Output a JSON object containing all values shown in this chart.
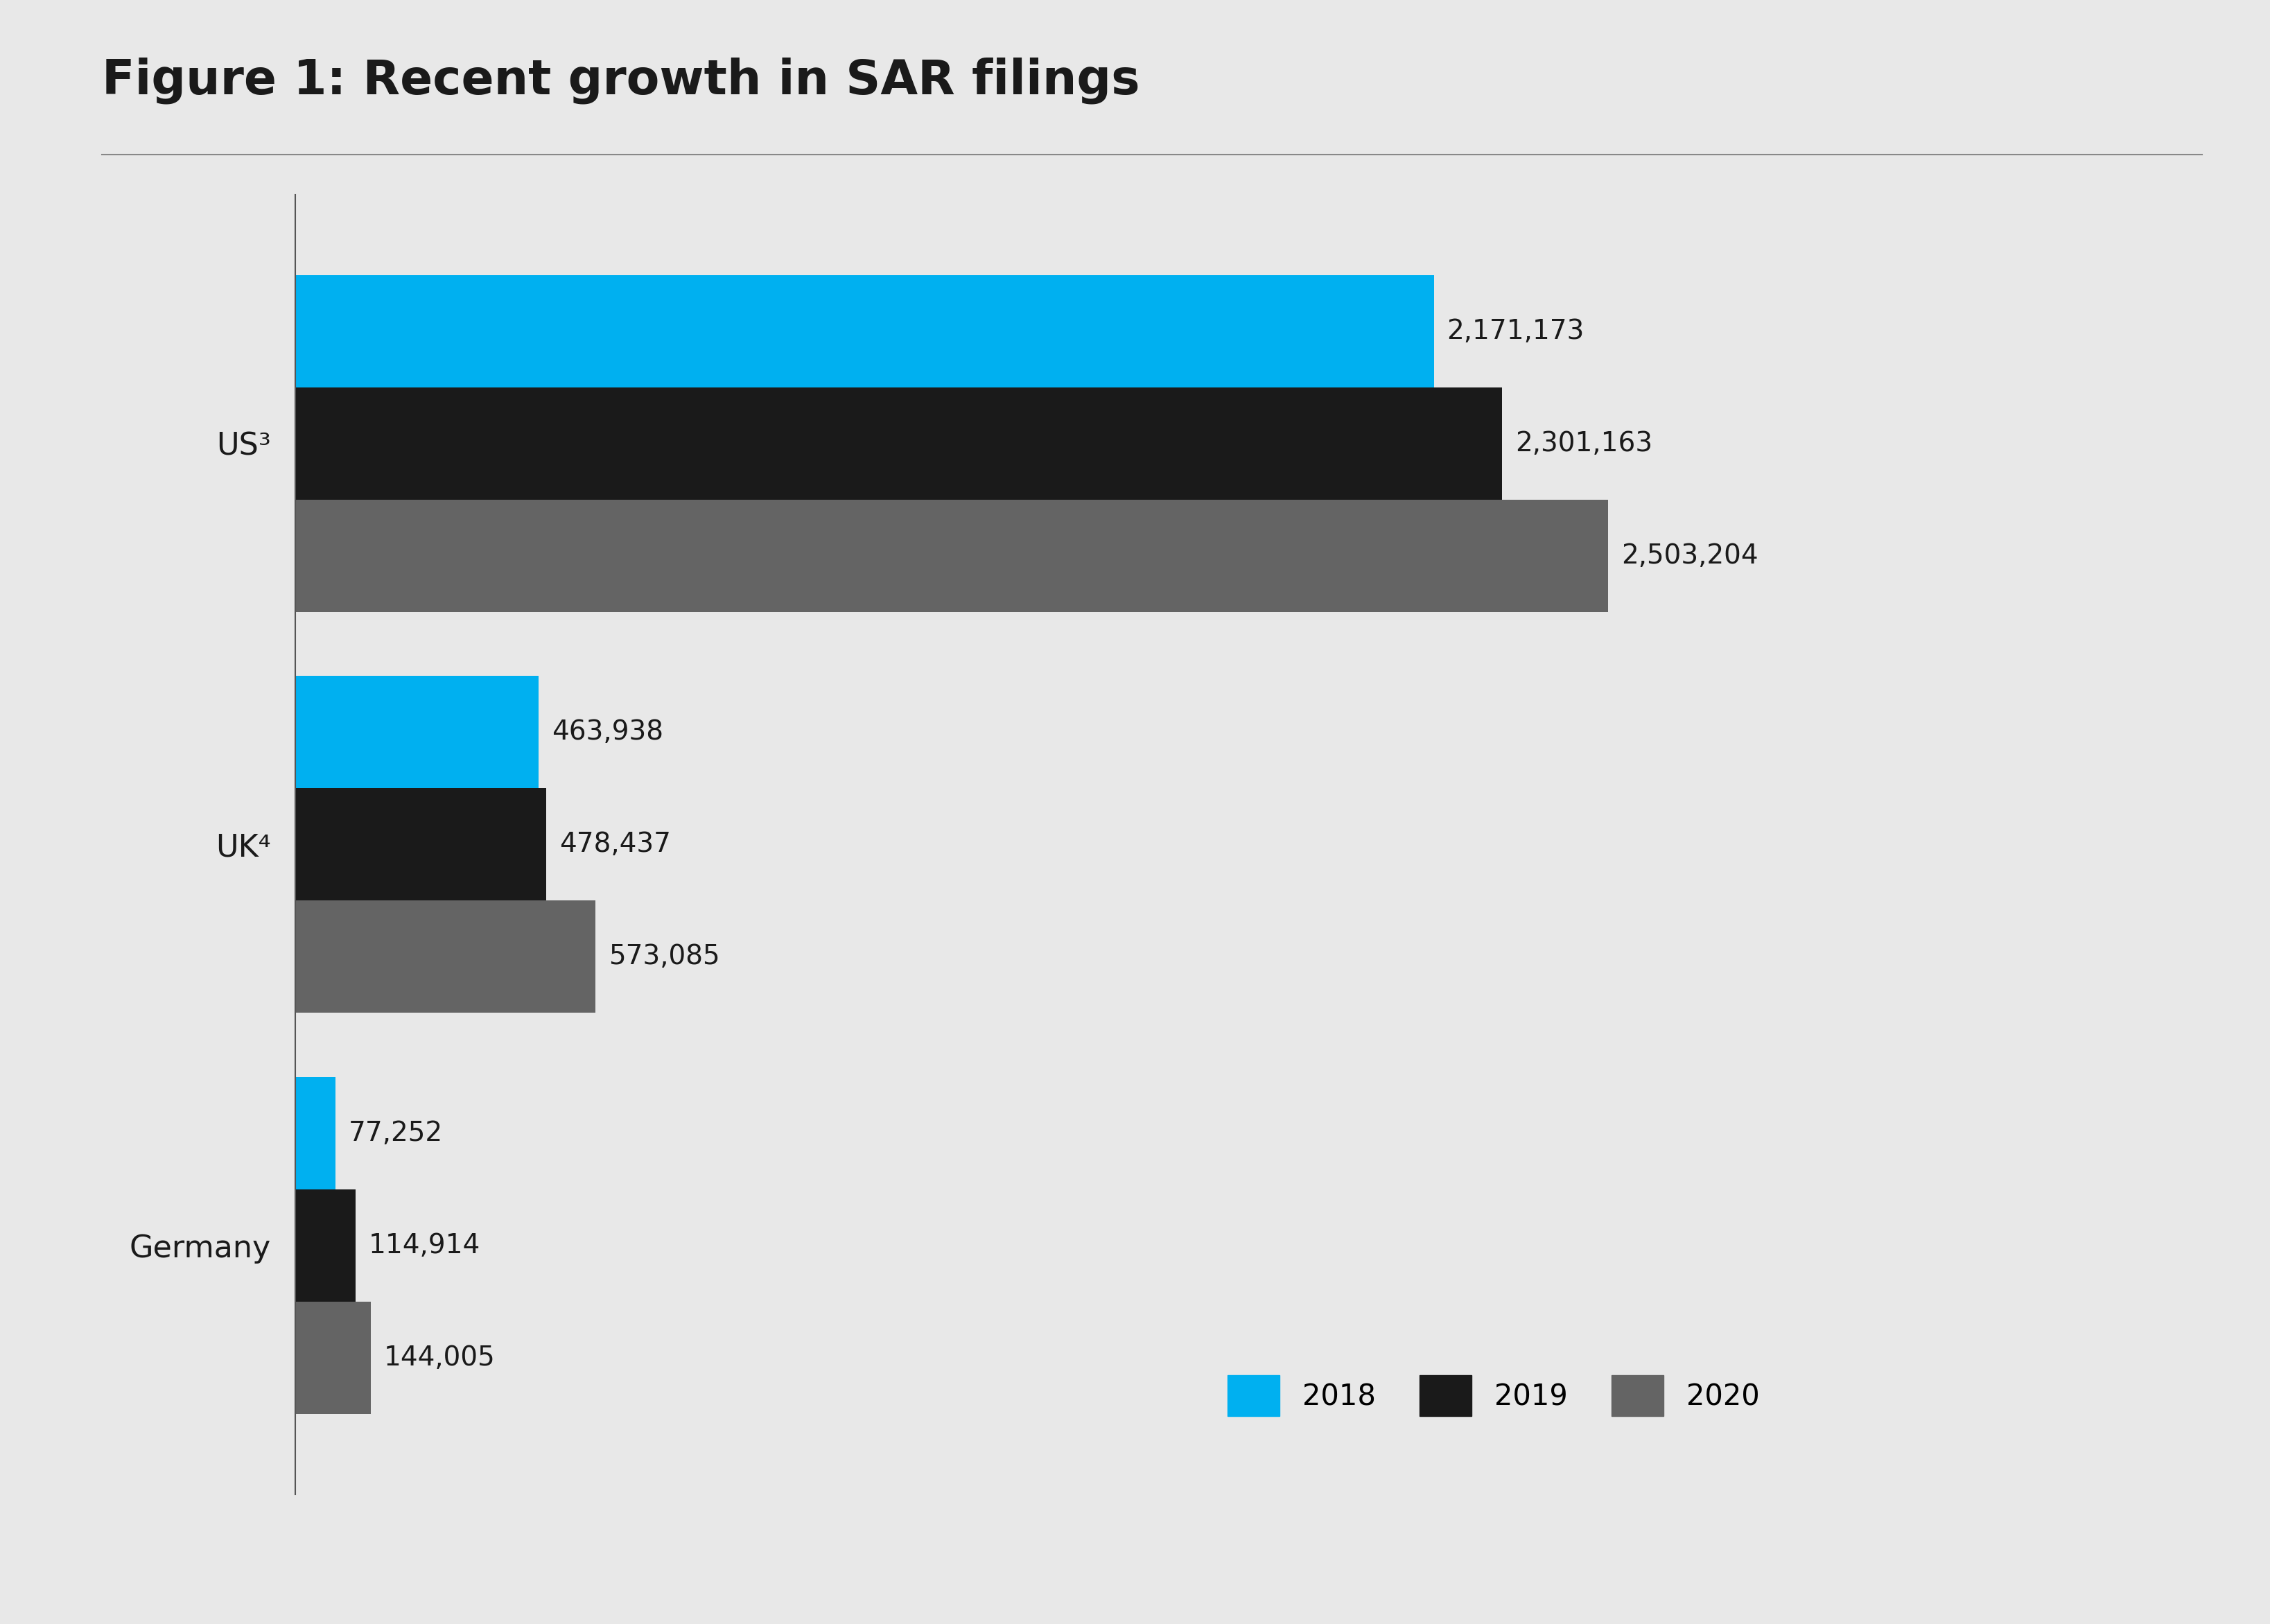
{
  "title": "Figure 1: Recent growth in SAR filings",
  "background_color": "#e8e8e8",
  "categories": [
    "US³",
    "UK⁴",
    "Germany"
  ],
  "years": [
    "2018",
    "2019",
    "2020"
  ],
  "colors": [
    "#00b0f0",
    "#1a1a1a",
    "#646464"
  ],
  "values": {
    "US³": [
      2171173,
      2301163,
      2503204
    ],
    "UK⁴": [
      463938,
      478437,
      573085
    ],
    "Germany": [
      77252,
      114914,
      144005
    ]
  },
  "labels": {
    "US³": [
      "2,171,173",
      "2,301,163",
      "2,503,204"
    ],
    "UK⁴": [
      "463,938",
      "478,437",
      "573,085"
    ],
    "Germany": [
      "77,252",
      "114,914",
      "144,005"
    ]
  },
  "xlim": [
    0,
    2900000
  ],
  "bar_height": 0.28,
  "label_fontsize": 28,
  "title_fontsize": 50,
  "axis_label_fontsize": 32,
  "legend_fontsize": 30
}
